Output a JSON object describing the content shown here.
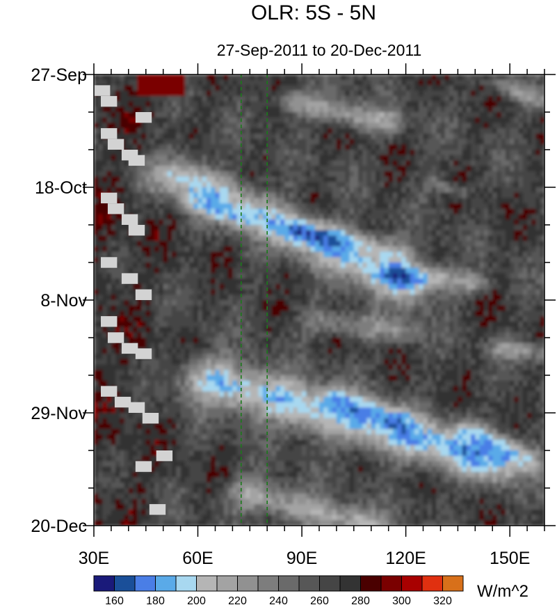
{
  "chart_data": {
    "type": "heatmap",
    "title": "OLR: 5S - 5N",
    "subtitle": "27-Sep-2011 to 20-Dec-2011",
    "x_ticks": [
      {
        "value": 30,
        "label": "30E"
      },
      {
        "value": 60,
        "label": "60E"
      },
      {
        "value": 90,
        "label": "90E"
      },
      {
        "value": 120,
        "label": "120E"
      },
      {
        "value": 150,
        "label": "150E"
      }
    ],
    "y_ticks": [
      {
        "value": 0,
        "label": "27-Sep"
      },
      {
        "value": 21,
        "label": "18-Oct"
      },
      {
        "value": 42,
        "label": "8-Nov"
      },
      {
        "value": 63,
        "label": "29-Nov"
      },
      {
        "value": 84,
        "label": "20-Dec"
      }
    ],
    "xlim": [
      30,
      160
    ],
    "ylim": [
      0,
      84
    ],
    "reference_lines_x": [
      72.5,
      80
    ],
    "reference_line_color": "#1a7a1a",
    "colorbar": {
      "unit_label": "W/m^2",
      "levels": [
        160,
        170,
        180,
        190,
        200,
        210,
        220,
        230,
        240,
        250,
        260,
        270,
        280,
        290,
        300,
        310,
        320
      ],
      "tick_labels": [
        "160",
        "180",
        "200",
        "220",
        "240",
        "260",
        "280",
        "300",
        "320"
      ],
      "colors": [
        "#1a1a7a",
        "#1a4f99",
        "#4a7ee6",
        "#5aaae8",
        "#a8d8f0",
        "#b5b5b5",
        "#a3a3a3",
        "#919191",
        "#7d7d7d",
        "#6a6a6a",
        "#575757",
        "#454545",
        "#333333",
        "#4a0000",
        "#7a0000",
        "#a80000",
        "#e03010",
        "#d8701a"
      ]
    },
    "missing_color": "#d3d3d3",
    "features": [
      {
        "name": "eastward-propagating convection band 1",
        "start": {
          "x": 55,
          "day": 19
        },
        "end": {
          "x": 120,
          "day": 39
        }
      },
      {
        "name": "eastward-propagating convection band 2",
        "start": {
          "x": 65,
          "day": 57
        },
        "end": {
          "x": 145,
          "day": 72
        }
      }
    ]
  }
}
